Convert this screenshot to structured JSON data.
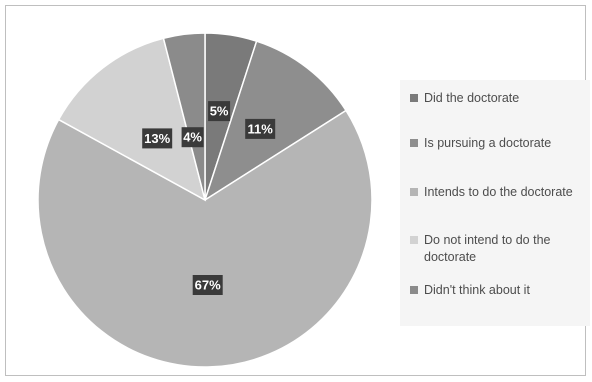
{
  "colors": {
    "slices": [
      "#7a7a7a",
      "#8e8e8e",
      "#b5b5b5",
      "#d2d2d2",
      "#8b8b8b"
    ],
    "border": "#ffffff"
  },
  "chart_data": {
    "type": "pie",
    "title": "",
    "labels": [
      "Did the doctorate",
      "Is pursuing a doctorate",
      "Intends to do the doctorate",
      "Do not intend to do the doctorate",
      "Didn't think about it"
    ],
    "values": [
      5,
      11,
      67,
      13,
      4
    ],
    "data_labels": [
      "5%",
      "11%",
      "67%",
      "13%",
      "4%"
    ],
    "start_angle": "12 o'clock",
    "direction": "clockwise",
    "legend_position": "right"
  }
}
